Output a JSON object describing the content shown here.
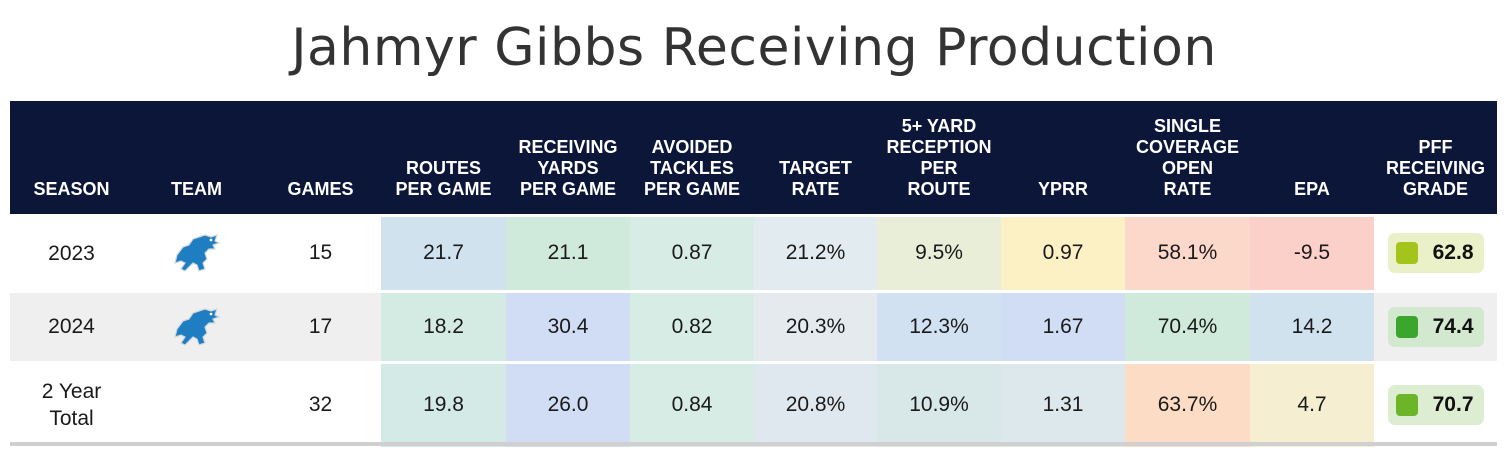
{
  "title": "Jahmyr Gibbs Receiving Production",
  "columns": [
    [
      "SEASON"
    ],
    [
      "TEAM"
    ],
    [
      "GAMES"
    ],
    [
      "ROUTES",
      "PER GAME"
    ],
    [
      "RECEIVING",
      "YARDS",
      "PER GAME"
    ],
    [
      "AVOIDED",
      "TACKLES",
      "PER GAME"
    ],
    [
      "TARGET",
      "RATE"
    ],
    [
      "5+ YARD",
      "RECEPTION",
      "PER",
      "ROUTE"
    ],
    [
      "YPRR"
    ],
    [
      "SINGLE",
      "COVERAGE",
      "OPEN",
      "RATE"
    ],
    [
      "EPA"
    ],
    [
      "PFF",
      "RECEIVING",
      "GRADE"
    ]
  ],
  "team_logo": "lions-logo-icon",
  "rows": [
    {
      "label": [
        "2023"
      ],
      "team": true,
      "games": "15",
      "stats": [
        "21.7",
        "21.1",
        "0.87",
        "21.2%",
        "9.5%",
        "0.97",
        "58.1%",
        "-9.5"
      ],
      "colors": [
        "#d1e2ef",
        "#cfeadb",
        "#d8ece6",
        "#e2ebef",
        "#e9eed8",
        "#fcf1c5",
        "#fcd8cb",
        "#fbd0c8"
      ],
      "grade": "62.8",
      "grade_bg": "#eaf0c8",
      "grade_color": "#a4c41c"
    },
    {
      "label": [
        "2024"
      ],
      "team": true,
      "games": "17",
      "stats": [
        "18.2",
        "30.4",
        "0.82",
        "20.3%",
        "12.3%",
        "1.67",
        "70.4%",
        "14.2"
      ],
      "colors": [
        "#d4ebe4",
        "#d1ddf4",
        "#d8ece6",
        "#e4eaee",
        "#d2e1f2",
        "#d1ddf4",
        "#cfeadb",
        "#d1e2ef"
      ],
      "grade": "74.4",
      "grade_bg": "#d2e8cf",
      "grade_color": "#3aa62c"
    },
    {
      "label": [
        "2 Year",
        "Total"
      ],
      "team": false,
      "games": "32",
      "stats": [
        "19.8",
        "26.0",
        "0.84",
        "20.8%",
        "10.9%",
        "1.31",
        "63.7%",
        "4.7"
      ],
      "colors": [
        "#d4eae6",
        "#d1ddf4",
        "#d6ece4",
        "#dfe8ef",
        "#d8e8e9",
        "#dce8ec",
        "#fcdcc4",
        "#f5eed1"
      ],
      "grade": "70.7",
      "grade_bg": "#dcedd1",
      "grade_color": "#6cb428"
    }
  ],
  "chart_data": {
    "type": "table",
    "title": "Jahmyr Gibbs Receiving Production",
    "columns": [
      "SEASON",
      "TEAM",
      "GAMES",
      "ROUTES PER GAME",
      "RECEIVING YARDS PER GAME",
      "AVOIDED TACKLES PER GAME",
      "TARGET RATE",
      "5+ YARD RECEPTION PER ROUTE",
      "YPRR",
      "SINGLE COVERAGE OPEN RATE",
      "EPA",
      "PFF RECEIVING GRADE"
    ],
    "rows": [
      [
        "2023",
        "Lions",
        15,
        21.7,
        21.1,
        0.87,
        "21.2%",
        "9.5%",
        0.97,
        "58.1%",
        -9.5,
        62.8
      ],
      [
        "2024",
        "Lions",
        17,
        18.2,
        30.4,
        0.82,
        "20.3%",
        "12.3%",
        1.67,
        "70.4%",
        14.2,
        74.4
      ],
      [
        "2 Year Total",
        "",
        32,
        19.8,
        26.0,
        0.84,
        "20.8%",
        "10.9%",
        1.31,
        "63.7%",
        4.7,
        70.7
      ]
    ]
  }
}
